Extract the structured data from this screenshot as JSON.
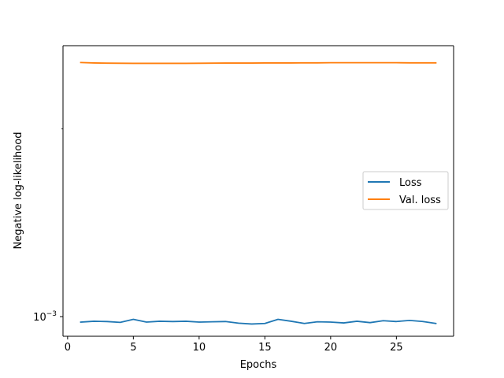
{
  "chart_data": {
    "type": "line",
    "title": "",
    "xlabel": "Epochs",
    "ylabel": "Negative log-likelihood",
    "x_ticks": [
      0,
      5,
      10,
      15,
      20,
      25
    ],
    "y_scale": "log",
    "y_ticks": [
      {
        "value": 0.001,
        "base": "10",
        "exponent": "−3"
      }
    ],
    "xlim": [
      -0.35,
      29.35
    ],
    "ylim": [
      0.00093,
      0.00272
    ],
    "grid": false,
    "legend_position": "center-right",
    "x": [
      1,
      2,
      3,
      4,
      5,
      6,
      7,
      8,
      9,
      10,
      11,
      12,
      13,
      14,
      15,
      16,
      17,
      18,
      19,
      20,
      21,
      22,
      23,
      24,
      25,
      26,
      27,
      28
    ],
    "series": [
      {
        "name": "Loss",
        "color": "#1f77b4",
        "values": [
          0.00098,
          0.000983,
          0.000982,
          0.000979,
          0.00099,
          0.00098,
          0.000983,
          0.000982,
          0.000983,
          0.00098,
          0.000981,
          0.000982,
          0.000976,
          0.000973,
          0.000975,
          0.00099,
          0.000983,
          0.000975,
          0.000981,
          0.00098,
          0.000977,
          0.000983,
          0.000978,
          0.000985,
          0.000982,
          0.000986,
          0.000982,
          0.000975
        ]
      },
      {
        "name": "Val. loss",
        "color": "#ff7f0e",
        "values": [
          0.002556,
          0.002552,
          0.00255,
          0.002549,
          0.002548,
          0.002548,
          0.002548,
          0.002548,
          0.002548,
          0.002549,
          0.00255,
          0.002551,
          0.002551,
          0.002551,
          0.002552,
          0.002552,
          0.002552,
          0.002553,
          0.002553,
          0.002554,
          0.002554,
          0.002554,
          0.002554,
          0.002554,
          0.002554,
          0.002553,
          0.002553,
          0.002553
        ]
      }
    ]
  }
}
